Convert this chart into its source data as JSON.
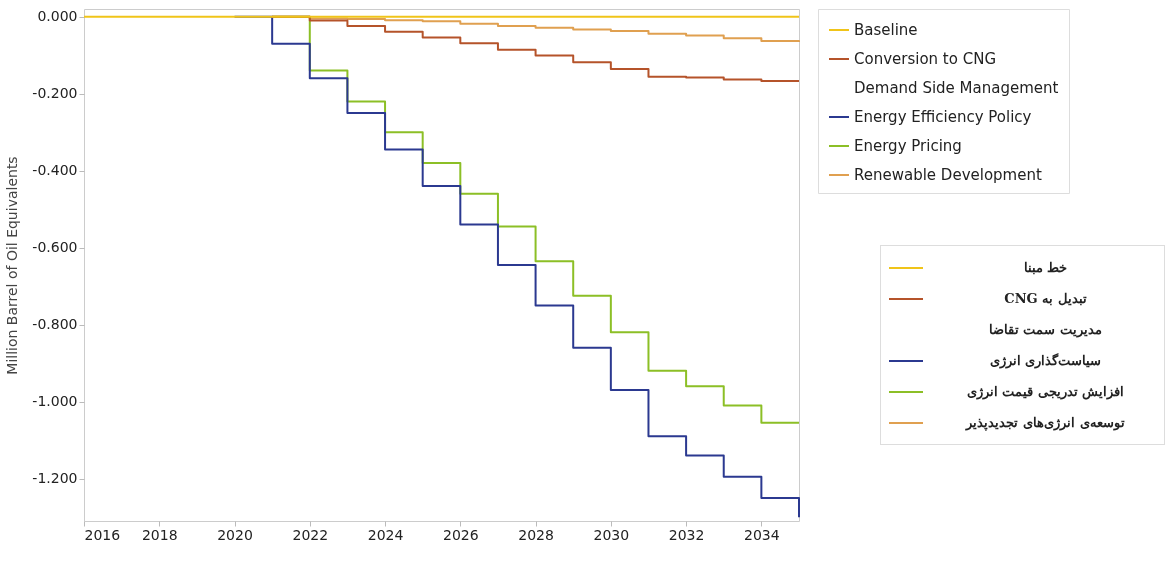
{
  "chart_data": {
    "type": "step",
    "ylabel": "Million Barrel of Oil Equivalents",
    "x": [
      2016,
      2017,
      2018,
      2019,
      2020,
      2021,
      2022,
      2023,
      2024,
      2025,
      2026,
      2027,
      2028,
      2029,
      2030,
      2031,
      2032,
      2033,
      2034,
      2035
    ],
    "series": [
      {
        "name": "Baseline",
        "color": "#f0c419",
        "values": [
          0,
          0,
          0,
          0,
          0,
          0,
          0,
          0,
          0,
          0,
          0,
          0,
          0,
          0,
          0,
          0,
          0,
          0,
          0,
          0
        ]
      },
      {
        "name": "Conversion to CNG",
        "color": "#b5532a",
        "values": [
          null,
          null,
          null,
          null,
          null,
          0,
          -0.01,
          -0.024,
          -0.039,
          -0.054,
          -0.069,
          -0.086,
          -0.101,
          -0.118,
          -0.136,
          -0.156,
          -0.158,
          -0.163,
          -0.167,
          -0.167
        ]
      },
      {
        "name": "Demand Side Management",
        "values": [
          null,
          null,
          null,
          null,
          null,
          null,
          null,
          null,
          null,
          null,
          null,
          null,
          null,
          null,
          null,
          null,
          null,
          null,
          null,
          null
        ]
      },
      {
        "name": "Energy Efficiency Policy",
        "color": "#2b3990",
        "values": [
          null,
          null,
          null,
          null,
          0,
          -0.07,
          -0.16,
          -0.25,
          -0.345,
          -0.44,
          -0.54,
          -0.645,
          -0.75,
          -0.86,
          -0.97,
          -1.09,
          -1.14,
          -1.195,
          -1.25,
          -1.3
        ]
      },
      {
        "name": "Energy Pricing",
        "color": "#8cbf26",
        "values": [
          null,
          null,
          null,
          null,
          null,
          0,
          -0.14,
          -0.22,
          -0.3,
          -0.38,
          -0.46,
          -0.545,
          -0.635,
          -0.725,
          -0.82,
          -0.92,
          -0.96,
          -1.01,
          -1.055,
          -1.055
        ]
      },
      {
        "name": "Renewable Development",
        "color": "#e0a050",
        "values": [
          null,
          null,
          null,
          null,
          null,
          0,
          -0.005,
          -0.006,
          -0.009,
          -0.012,
          -0.018,
          -0.024,
          -0.029,
          -0.033,
          -0.037,
          -0.044,
          -0.049,
          -0.056,
          -0.063,
          -0.066
        ]
      }
    ],
    "xlim": [
      2016,
      2035
    ],
    "xticks": [
      2016,
      2018,
      2020,
      2022,
      2024,
      2026,
      2028,
      2030,
      2032,
      2034
    ],
    "ylim": [
      -1.31,
      0.02
    ],
    "yticks": [
      {
        "value": 0,
        "label": "0.000"
      },
      {
        "value": -0.2,
        "label": "-0.200"
      },
      {
        "value": -0.4,
        "label": "-0.400"
      },
      {
        "value": -0.6,
        "label": "-0.600"
      },
      {
        "value": -0.8,
        "label": "-0.800"
      },
      {
        "value": -1.0,
        "label": "-1.000"
      },
      {
        "value": -1.2,
        "label": "-1.200"
      }
    ],
    "grid": false,
    "legend": "top right",
    "annotations": [
      "خط مبنا",
      "تبدیل به CNG",
      "مدیریت سمت تقاضا",
      "سیاست‌گذاری انرژی",
      "افزایش تدریجی قیمت انرژی",
      "توسعه‌ی انرژی‌های تجدیدپذیر"
    ]
  }
}
